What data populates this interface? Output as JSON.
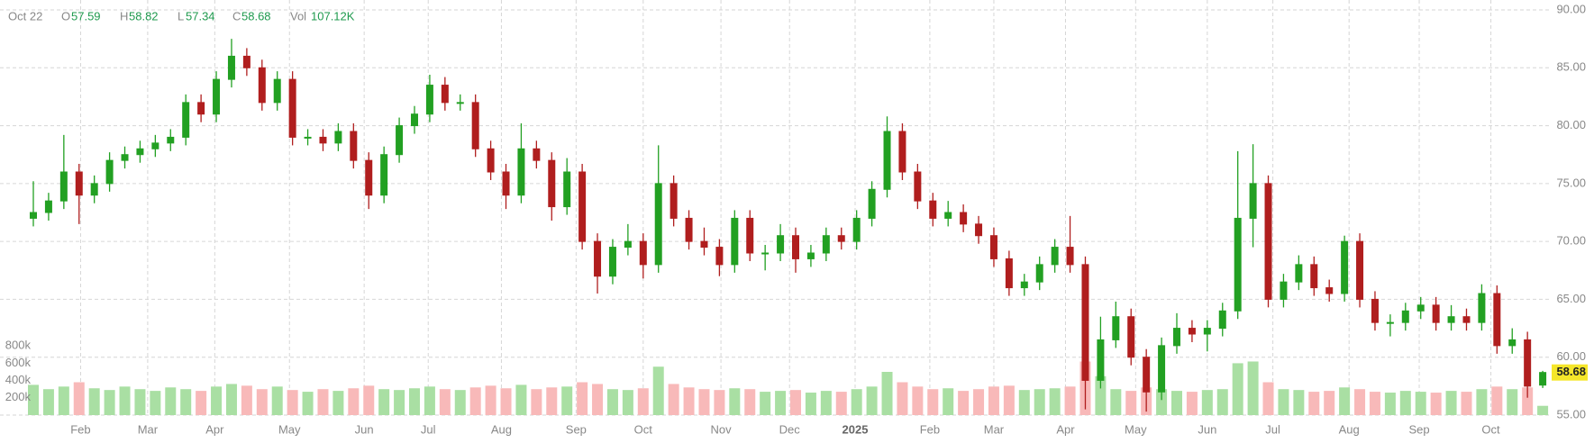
{
  "header": {
    "date": "Oct 22",
    "labels": [
      "O",
      "H",
      "L",
      "C",
      "Vol"
    ],
    "volume_label": "107.12K"
  },
  "chart_data": {
    "type": "candlestick",
    "open": [
      72,
      72.5,
      73.5,
      76,
      74,
      75,
      77,
      77.5,
      78,
      78.5,
      79,
      82,
      81,
      84,
      86,
      85,
      82,
      84,
      79,
      79,
      78.5,
      79.5,
      77,
      74,
      77.5,
      80,
      81,
      83.5,
      82,
      82,
      78,
      76,
      74,
      78,
      77,
      73,
      76,
      70,
      67,
      69.5,
      70,
      68,
      75,
      72,
      70,
      69.5,
      68,
      72,
      69,
      69,
      70.5,
      68.5,
      69,
      70.5,
      70,
      72,
      74.5,
      79.5,
      76,
      73.5,
      72,
      72.5,
      71.5,
      70.5,
      68.5,
      66,
      66.5,
      68,
      69.5,
      68,
      58,
      61.5,
      63.5,
      60,
      57,
      61,
      62.5,
      62,
      62.5,
      64,
      72,
      75,
      65,
      66.5,
      68,
      66,
      65.5,
      70,
      65,
      63,
      63,
      64,
      64.5,
      63,
      63.5,
      63,
      65.5,
      61,
      61.5,
      57.59
    ],
    "high": [
      75.2,
      74.2,
      79.2,
      76.7,
      75.7,
      77.7,
      78.2,
      78.7,
      79.2,
      79.7,
      82.7,
      82.7,
      84.7,
      87.5,
      86.7,
      85.7,
      84.7,
      84.7,
      79.7,
      79.7,
      80.2,
      80.2,
      77.7,
      78.2,
      80.7,
      81.7,
      84.4,
      84.2,
      82.7,
      82.7,
      78.7,
      76.7,
      80.2,
      78.7,
      77.7,
      77.2,
      76.7,
      70.7,
      70.2,
      71.5,
      70.7,
      78.3,
      75.7,
      72.7,
      71.2,
      70.2,
      72.7,
      72.7,
      69.7,
      71.5,
      71.2,
      69.7,
      71.2,
      71.2,
      72.7,
      75.2,
      80.8,
      80.2,
      76.7,
      74.2,
      73.5,
      73.2,
      72.2,
      71.2,
      69.2,
      67.2,
      68.7,
      70.2,
      72.2,
      68.7,
      63.5,
      64.8,
      64.2,
      60.7,
      61.7,
      63.8,
      63.2,
      63.2,
      64.7,
      77.8,
      78.4,
      75.7,
      67.2,
      68.8,
      68.7,
      66.7,
      70.5,
      70.7,
      65.7,
      63.7,
      64.7,
      65.2,
      65.2,
      64.5,
      64.2,
      66.3,
      66.2,
      62.5,
      62.2,
      58.82
    ],
    "low": [
      71.3,
      71.8,
      72.8,
      71.5,
      73.3,
      74.3,
      76.3,
      76.8,
      77.3,
      77.8,
      78.3,
      80.3,
      80.3,
      83.3,
      84.3,
      81.3,
      81.3,
      78.3,
      78.3,
      77.8,
      77.8,
      76.3,
      72.8,
      73.3,
      76.8,
      79.3,
      80.3,
      81.3,
      81.3,
      77.3,
      75.3,
      72.8,
      73.3,
      76.3,
      71.8,
      72.3,
      69.3,
      65.5,
      66.3,
      68.8,
      66.8,
      67.3,
      71.3,
      69.3,
      68.8,
      67,
      67.3,
      68.3,
      67.5,
      68.3,
      67.3,
      67.8,
      68.3,
      69.3,
      69.3,
      71.3,
      73.8,
      75.3,
      72.8,
      71.3,
      71.3,
      70.8,
      69.8,
      67.8,
      65.3,
      65.3,
      65.8,
      67.3,
      67.3,
      55.5,
      57.3,
      60.8,
      59.3,
      55.3,
      56.3,
      60.3,
      61.3,
      60.5,
      61.8,
      63.3,
      69.5,
      64.3,
      64.3,
      65.8,
      65.3,
      64.8,
      64.8,
      64.3,
      62.3,
      61.8,
      62.3,
      63.3,
      62.3,
      62.3,
      62.3,
      62.3,
      60.3,
      60.3,
      56.5,
      57.34
    ],
    "close": [
      72.5,
      73.5,
      76,
      74,
      75,
      77,
      77.5,
      78,
      78.5,
      79,
      82,
      81,
      84,
      86,
      85,
      82,
      84,
      79,
      79,
      78.5,
      79.5,
      77,
      74,
      77.5,
      80,
      81,
      83.5,
      82,
      82,
      78,
      76,
      74,
      78,
      77,
      73,
      76,
      70,
      67,
      69.5,
      70,
      68,
      75,
      72,
      70,
      69.5,
      68,
      72,
      69,
      69,
      70.5,
      68.5,
      69,
      70.5,
      70,
      72,
      74.5,
      79.5,
      76,
      73.5,
      72,
      72.5,
      71.5,
      70.5,
      68.5,
      66,
      66.5,
      68,
      69.5,
      68,
      58,
      61.5,
      63.5,
      60,
      57,
      61,
      62.5,
      62,
      62.5,
      64,
      72,
      75,
      65,
      66.5,
      68,
      66,
      65.5,
      70,
      65,
      63,
      63,
      64,
      64.5,
      63,
      63.5,
      63,
      65.5,
      61,
      61.5,
      57.5,
      58.68
    ],
    "volume": [
      350,
      300,
      330,
      380,
      310,
      290,
      330,
      300,
      280,
      320,
      300,
      280,
      330,
      360,
      340,
      300,
      330,
      290,
      270,
      300,
      280,
      310,
      340,
      300,
      290,
      310,
      330,
      300,
      290,
      320,
      340,
      310,
      350,
      300,
      320,
      330,
      380,
      360,
      300,
      290,
      310,
      560,
      360,
      320,
      300,
      290,
      310,
      300,
      270,
      280,
      290,
      260,
      280,
      270,
      300,
      330,
      500,
      380,
      330,
      300,
      310,
      280,
      300,
      330,
      340,
      290,
      300,
      310,
      330,
      620,
      450,
      300,
      280,
      320,
      300,
      280,
      270,
      290,
      300,
      600,
      620,
      380,
      300,
      290,
      270,
      280,
      320,
      300,
      270,
      260,
      280,
      270,
      260,
      280,
      270,
      300,
      330,
      300,
      320,
      107.12
    ],
    "up_color": "#22a022",
    "down_color": "#b01e1e",
    "up_volume_color": "#a9dfa3",
    "down_volume_color": "#f8b9b9",
    "ylim": [
      55,
      90
    ],
    "yticks": [
      {
        "value": 55,
        "label": "55.00"
      },
      {
        "value": 60,
        "label": "60.00"
      },
      {
        "value": 65,
        "label": "65.00"
      },
      {
        "value": 70,
        "label": "70.00"
      },
      {
        "value": 75,
        "label": "75.00"
      },
      {
        "value": 80,
        "label": "80.00"
      },
      {
        "value": 85,
        "label": "85.00"
      },
      {
        "value": 90,
        "label": "90.00"
      }
    ],
    "volume_ticks": [
      {
        "value": 200,
        "label": "200k"
      },
      {
        "value": 400,
        "label": "400k"
      },
      {
        "value": 600,
        "label": "600k"
      },
      {
        "value": 800,
        "label": "800k"
      }
    ],
    "xticks": [
      {
        "value": 3.1,
        "label": "Feb"
      },
      {
        "value": 7.5,
        "label": "Mar"
      },
      {
        "value": 11.9,
        "label": "Apr"
      },
      {
        "value": 16.8,
        "label": "May"
      },
      {
        "value": 21.7,
        "label": "Jun"
      },
      {
        "value": 25.9,
        "label": "Jul"
      },
      {
        "value": 30.7,
        "label": "Aug"
      },
      {
        "value": 35.6,
        "label": "Sep"
      },
      {
        "value": 40,
        "label": "Oct"
      },
      {
        "value": 45.1,
        "label": "Nov"
      },
      {
        "value": 49.6,
        "label": "Dec"
      },
      {
        "value": 53.9,
        "label": "2025"
      },
      {
        "value": 58.8,
        "label": "Feb"
      },
      {
        "value": 63,
        "label": "Mar"
      },
      {
        "value": 67.7,
        "label": "Apr"
      },
      {
        "value": 72.3,
        "label": "May"
      },
      {
        "value": 77,
        "label": "Jun"
      },
      {
        "value": 81.3,
        "label": "Jul"
      },
      {
        "value": 86.3,
        "label": "Aug"
      },
      {
        "value": 90.9,
        "label": "Sep"
      },
      {
        "value": 95.6,
        "label": "Oct"
      }
    ],
    "grid": true
  }
}
